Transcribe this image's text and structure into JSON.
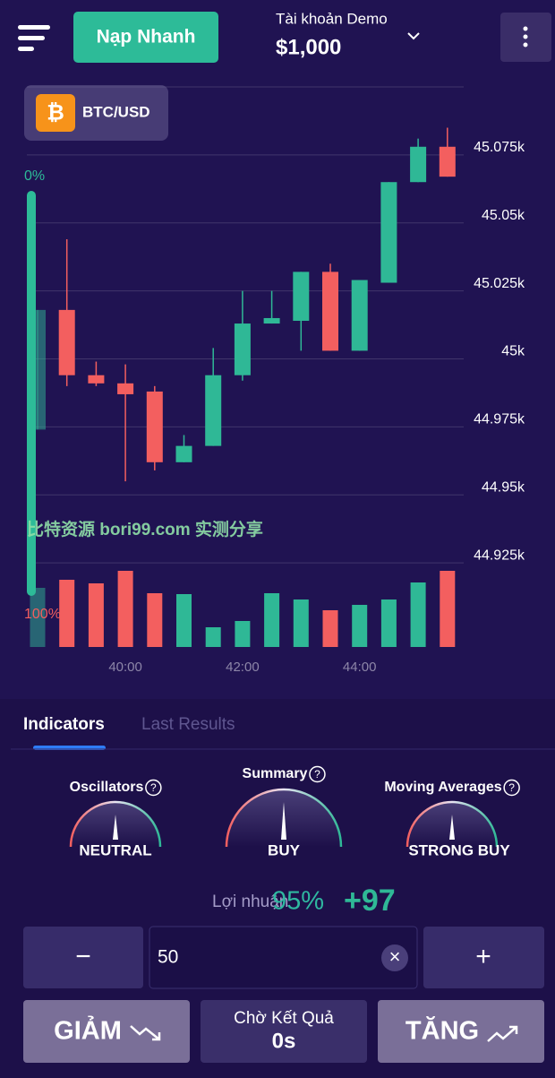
{
  "header": {
    "deposit_button": "Nạp Nhanh",
    "account_label": "Tài khoản Demo",
    "balance": "$1,000"
  },
  "asset": {
    "icon": "₿",
    "name": "BTC/USD"
  },
  "chart_data": {
    "type": "candlestick",
    "categories": [
      null,
      null,
      null,
      "40:00",
      null,
      null,
      null,
      "42:00",
      null,
      null,
      null,
      "44:00",
      null,
      null,
      null
    ],
    "open": [
      44974,
      45018,
      44994,
      44991,
      44988,
      44962,
      44968,
      44994,
      45013,
      45014,
      45032,
      45003,
      45028,
      45065,
      45078
    ],
    "high": [
      45018,
      45044,
      44999,
      44998,
      44990,
      44972,
      45004,
      45025,
      45025,
      45032,
      45035,
      45029,
      45065,
      45081,
      45085
    ],
    "low": [
      44974,
      44990,
      44990,
      44955,
      44959,
      44962,
      44968,
      44992,
      45013,
      45003,
      45003,
      45003,
      45028,
      45065,
      45067
    ],
    "close": [
      45018,
      44994,
      44991,
      44987,
      44962,
      44968,
      44994,
      45013,
      45015,
      45032,
      45003,
      45029,
      45065,
      45078,
      45067
    ],
    "volume": [
      66,
      75,
      71,
      85,
      60,
      59,
      22,
      29,
      60,
      53,
      41,
      47,
      53,
      72,
      85
    ],
    "up_color": "#2fb896",
    "down_color": "#f35f5f",
    "ylim": [
      44900,
      45100
    ],
    "yticks": [
      {
        "value": 44925,
        "label": "44.925k"
      },
      {
        "value": 44950,
        "label": "44.95k"
      },
      {
        "value": 44975,
        "label": "44.975k"
      },
      {
        "value": 45000,
        "label": "45k"
      },
      {
        "value": 45025,
        "label": "45.025k"
      },
      {
        "value": 45050,
        "label": "45.05k"
      },
      {
        "value": 45075,
        "label": "45.075k"
      }
    ],
    "grid": true
  },
  "sentiment_bar": {
    "top_label": "0%",
    "bottom_label": "100%"
  },
  "watermark": "比特资源  bori99.com  实测分享",
  "tabs": [
    "Indicators",
    "Last Results"
  ],
  "indicators": [
    {
      "title": "Oscillators",
      "signal": "NEUTRAL"
    },
    {
      "title": "Summary",
      "signal": "BUY"
    },
    {
      "title": "Moving Averages",
      "signal": "STRONG BUY"
    }
  ],
  "help_icon": "?",
  "profit": {
    "label": "Lợi nhuận",
    "percent": "95%",
    "amount": "+97"
  },
  "amount_input": {
    "decrease": "−",
    "value": "50",
    "clear": "×",
    "increase": "+"
  },
  "buttons": {
    "down": "GIẢM",
    "status": "Chờ Kết Quả",
    "timer": "0s",
    "up": "TĂNG"
  }
}
